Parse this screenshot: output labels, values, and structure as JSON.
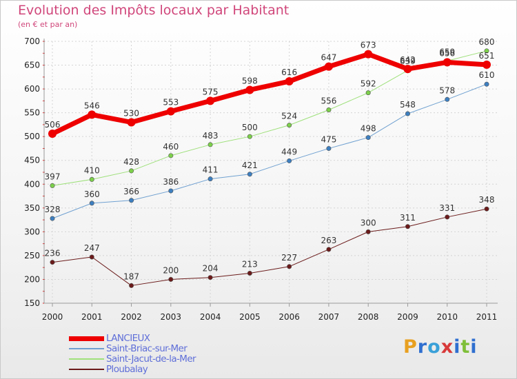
{
  "header": {
    "title": "Evolution des Impôts locaux par Habitant",
    "subtitle": "(en € et par an)"
  },
  "logo": {
    "text": "Proxiti",
    "letter_colors": [
      "#e8a020",
      "#2f6fd0",
      "#3aa0d8",
      "#d83a3a",
      "#2f6fd0",
      "#7fbf3a",
      "#2f6fd0"
    ]
  },
  "colors": {
    "title": "#d0467a",
    "grid_label": "#000000",
    "legend_text": "#5f6fd8"
  },
  "chart_data": {
    "type": "line",
    "title": "Evolution des Impôts locaux par Habitant",
    "subtitle": "(en € et par an)",
    "xlabel": "",
    "ylabel": "",
    "categories": [
      "2000",
      "2001",
      "2002",
      "2003",
      "2004",
      "2005",
      "2006",
      "2007",
      "2008",
      "2009",
      "2010",
      "2011"
    ],
    "ylim": [
      150,
      700
    ],
    "yticks": [
      150,
      200,
      250,
      300,
      350,
      400,
      450,
      500,
      550,
      600,
      650,
      700
    ],
    "grid": true,
    "legend_position": "bottom-left",
    "series": [
      {
        "name": "Ploubalay",
        "color": "#6b1a1a",
        "marker": "#6b1a1a",
        "width": 1,
        "values": [
          236,
          247,
          187,
          200,
          204,
          213,
          227,
          263,
          300,
          311,
          331,
          348
        ]
      },
      {
        "name": "Saint-Briac-sur-Mer",
        "color": "#6fa0d0",
        "marker": "#3d7fc0",
        "width": 1,
        "values": [
          328,
          360,
          366,
          386,
          411,
          421,
          449,
          475,
          498,
          548,
          578,
          610
        ]
      },
      {
        "name": "Saint-Jacut-de-la-Mer",
        "color": "#9ee07a",
        "marker": "#7cd04a",
        "width": 1,
        "values": [
          397,
          410,
          428,
          460,
          483,
          500,
          524,
          556,
          592,
          639,
          659,
          680
        ]
      },
      {
        "name": "LANCIEUX",
        "color": "#ee0000",
        "marker": "#ee0000",
        "width": 7,
        "values": [
          506,
          546,
          530,
          553,
          575,
          598,
          616,
          647,
          673,
          642,
          656,
          651
        ]
      }
    ]
  },
  "legend": {
    "items": [
      "LANCIEUX",
      "Saint-Briac-sur-Mer",
      "Saint-Jacut-de-la-Mer",
      "Ploubalay"
    ]
  }
}
